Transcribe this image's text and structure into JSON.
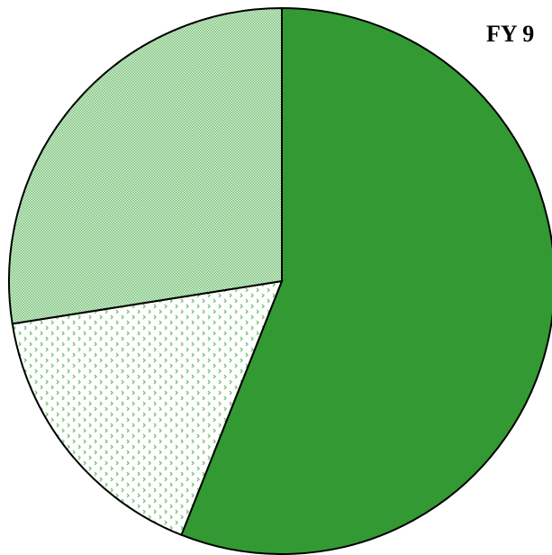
{
  "chart_data": {
    "type": "pie",
    "title": "FY 9",
    "values": [
      56,
      16.5,
      27.5
    ],
    "colors": [
      "#339933",
      "#7cc47c",
      "#7cc47c"
    ],
    "patterns": [
      "solid",
      "dots",
      "checker"
    ],
    "start_angle": 0,
    "direction": "clockwise"
  }
}
